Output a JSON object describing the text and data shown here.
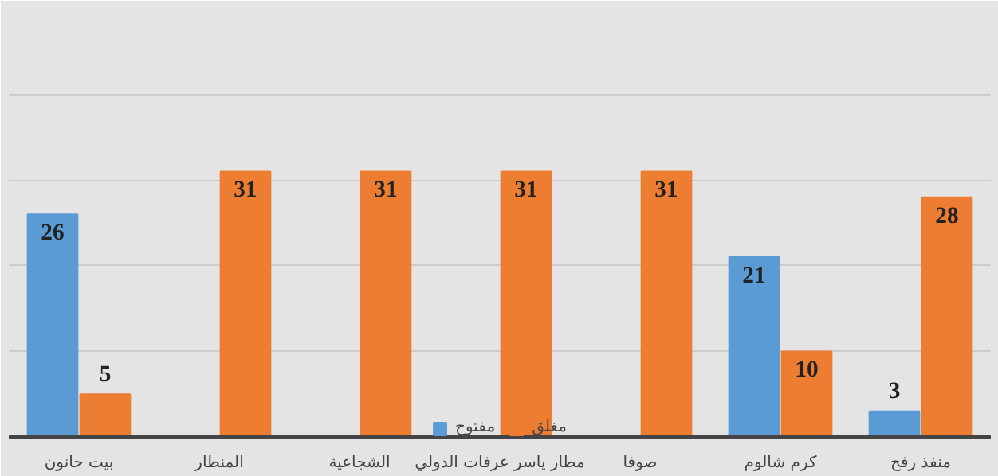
{
  "chart_data": {
    "type": "bar",
    "categories": [
      "بيت حانون",
      "المنطار",
      "الشجاعية",
      "مطار ياسر عرفات الدولي",
      "صوفا",
      "كرم شالوم",
      "منفذ رفح"
    ],
    "series": [
      {
        "name": "مفتوح",
        "color": "#5b9bd5",
        "values": [
          26,
          null,
          null,
          null,
          null,
          21,
          3
        ]
      },
      {
        "name": "مغلق",
        "color": "#ed7d31",
        "values": [
          5,
          31,
          31,
          31,
          31,
          10,
          28
        ]
      }
    ],
    "ylim": [
      0,
      50
    ],
    "yticks": [
      {
        "value": 0,
        "label": null
      },
      {
        "value": 10,
        "label": null
      },
      {
        "value": 20,
        "label": null
      },
      {
        "value": 30,
        "label": null
      },
      {
        "value": 40,
        "label": null
      },
      {
        "value": 50,
        "label": null
      }
    ],
    "grid": "y",
    "legend": "bottom",
    "data_labels": true,
    "tick_labels": "x"
  }
}
